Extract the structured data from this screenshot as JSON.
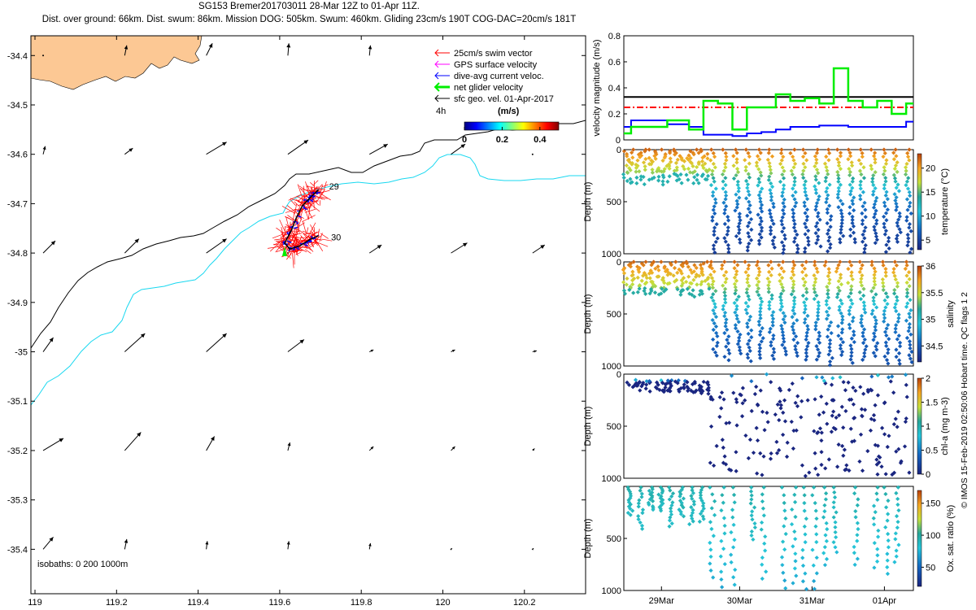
{
  "title": {
    "line1": "SG153 Bremer201703011 28-Mar 12Z to 01-Apr 11Z.",
    "line2": "Dist. over ground: 66km. Dist. swum: 86km. Mission DOG: 505km. Swum: 460km. Gliding 23cm/s 190T COG-DAC=20cm/s 181T"
  },
  "colors": {
    "land": "#fcc894",
    "isobath200": "#000000",
    "isobath1000": "#18d8f0",
    "swim": "#ff0000",
    "gps": "#ff00ff",
    "dac": "#0000ff",
    "net": "#00ee00",
    "sfc": "#000000",
    "hline_black": "#000000",
    "hline_red": "#ff0000"
  },
  "chart_data": [
    {
      "type": "map",
      "name": "glider-track-map",
      "xlim": [
        118.99,
        120.35
      ],
      "ylim": [
        -35.49,
        -34.36
      ],
      "xticks": [
        "119",
        "119.2",
        "119.4",
        "119.6",
        "119.8",
        "120",
        "120.2"
      ],
      "xtick_values": [
        119.0,
        119.2,
        119.4,
        119.6,
        119.8,
        120.0,
        120.2
      ],
      "yticks": [
        "-34.4",
        "-34.5",
        "-34.6",
        "-34.7",
        "-34.8",
        "-34.9",
        "-35",
        "-35.1",
        "-35.2",
        "-35.3",
        "-35.4"
      ],
      "ytick_values": [
        -34.4,
        -34.5,
        -34.6,
        -34.7,
        -34.8,
        -34.9,
        -35.0,
        -35.1,
        -35.2,
        -35.3,
        -35.4
      ],
      "legend": [
        {
          "label": "25cm/s swim vector",
          "series": "swim"
        },
        {
          "label": "GPS surface velocity",
          "series": "gps"
        },
        {
          "label": "dive-avg current veloc.",
          "series": "dac"
        },
        {
          "label": "net glider velocity",
          "series": "net"
        },
        {
          "label": "sfc geo. vel. 01-Apr-2017",
          "series": "sfc"
        }
      ],
      "colorbar": {
        "label": "(m/s)",
        "period_label": "4h",
        "ticks": [
          "0",
          "0.2",
          "0.4"
        ],
        "tick_values": [
          0,
          0.2,
          0.4
        ],
        "range": [
          0,
          0.5
        ]
      },
      "isobath_label": "isobaths: 0   200  1000m",
      "annotations": [
        {
          "text": "29",
          "lon": 119.715,
          "lat": -34.665
        },
        {
          "text": "30",
          "lon": 119.72,
          "lat": -34.768
        }
      ],
      "track": [
        {
          "lon": 119.695,
          "lat": -34.672
        },
        {
          "lon": 119.678,
          "lat": -34.685
        },
        {
          "lon": 119.655,
          "lat": -34.705
        },
        {
          "lon": 119.64,
          "lat": -34.73
        },
        {
          "lon": 119.628,
          "lat": -34.755
        },
        {
          "lon": 119.612,
          "lat": -34.78
        },
        {
          "lon": 119.625,
          "lat": -34.792
        },
        {
          "lon": 119.65,
          "lat": -34.785
        },
        {
          "lon": 119.675,
          "lat": -34.772
        },
        {
          "lon": 119.695,
          "lat": -34.765
        }
      ],
      "sfc_vectors": {
        "note": "surface geostrophic velocity arrows on grid, u/v in m/s",
        "grid_lon": [
          119.02,
          119.22,
          119.42,
          119.62,
          119.82,
          120.02,
          120.22
        ],
        "grid_lat": [
          -34.4,
          -34.6,
          -34.8,
          -35.0,
          -35.2,
          -35.4
        ],
        "u": [
          [
            0,
            0.01,
            0.03,
            0.005,
            0.005,
            0.04,
            0
          ],
          [
            0.01,
            0.04,
            0.1,
            0.1,
            0.09,
            0.07,
            0
          ],
          [
            0.06,
            0.07,
            0.1,
            0,
            0.06,
            0.08,
            0.06
          ],
          [
            0.05,
            0.1,
            0.1,
            0.08,
            0.02,
            0.02,
            0.02
          ],
          [
            0.1,
            0.08,
            0.04,
            0.01,
            0.02,
            0.02,
            0.01
          ],
          [
            0.05,
            0.01,
            0.005,
            0.005,
            0.005,
            0.005,
            0.005
          ]
        ],
        "v": [
          [
            0,
            0.05,
            0.06,
            0.06,
            0.05,
            0.03,
            0
          ],
          [
            0.04,
            0.03,
            0.06,
            0.07,
            0.05,
            0.05,
            0
          ],
          [
            0.06,
            0.07,
            0.07,
            0,
            0.04,
            0.05,
            0.04
          ],
          [
            0.07,
            0.09,
            0.09,
            0.06,
            0.01,
            0.01,
            0.005
          ],
          [
            0.06,
            0.09,
            0.07,
            0.04,
            0.02,
            0.02,
            0.01
          ],
          [
            0.06,
            0.05,
            0.04,
            0.04,
            0.03,
            0.005,
            0.005
          ]
        ]
      }
    },
    {
      "type": "line",
      "name": "velocity-magnitude-panel",
      "ylabel": "velocity magnitude (m/s)",
      "ylim": [
        0,
        0.8
      ],
      "yticks": [
        "0",
        "0.2",
        "0.4",
        "0.6",
        "0.8"
      ],
      "ytick_values": [
        0,
        0.2,
        0.4,
        0.6,
        0.8
      ],
      "hlines": [
        {
          "name": "max",
          "value": 0.33,
          "style": "solid",
          "color_key": "hline_black"
        },
        {
          "name": "target",
          "value": 0.25,
          "style": "dashdot",
          "color_key": "hline_red"
        }
      ],
      "x": [
        0,
        0.05,
        0.1,
        0.2,
        0.25,
        0.3,
        0.35,
        0.4,
        0.45,
        0.5,
        0.55,
        0.6,
        0.65,
        0.7,
        0.75,
        0.8,
        0.85,
        0.9,
        0.95,
        1.0
      ],
      "series": [
        {
          "name": "dive-avg current",
          "color_key": "dac",
          "values": [
            0.1,
            0.15,
            0.15,
            0.12,
            0.1,
            0.04,
            0.04,
            0.03,
            0.05,
            0.06,
            0.08,
            0.1,
            0.1,
            0.11,
            0.11,
            0.1,
            0.1,
            0.1,
            0.1,
            0.14
          ]
        },
        {
          "name": "net glider",
          "color_key": "net",
          "values": [
            0.05,
            0.1,
            0.1,
            0.15,
            0.08,
            0.3,
            0.28,
            0.08,
            0.25,
            0.25,
            0.35,
            0.3,
            0.32,
            0.28,
            0.55,
            0.3,
            0.25,
            0.3,
            0.2,
            0.28
          ]
        }
      ]
    },
    {
      "type": "scatter",
      "name": "temperature-panel",
      "ylabel": "Depth (m)",
      "ylim": [
        1000,
        0
      ],
      "yticks": [
        "0",
        "500",
        "1000"
      ],
      "ytick_values": [
        0,
        500,
        1000
      ],
      "colorbar": {
        "label": "temperature (°C)",
        "ticks": [
          "5",
          "10",
          "15",
          "20"
        ],
        "tick_values": [
          5,
          10,
          15,
          20
        ],
        "range": [
          3,
          23
        ]
      },
      "profiles": {
        "shallow_count": 7,
        "deep_count": 18,
        "shallow_max_depth": 340,
        "deep_max_depth": 1000
      },
      "profile_stats": {
        "surface_value": 22,
        "thermocline_depth": 230,
        "bottom_value": 4
      }
    },
    {
      "type": "scatter",
      "name": "salinity-panel",
      "ylabel": "Depth (m)",
      "ylim": [
        1000,
        0
      ],
      "yticks": [
        "0",
        "500",
        "1000"
      ],
      "ytick_values": [
        0,
        500,
        1000
      ],
      "colorbar": {
        "label": "salinity",
        "ticks": [
          "34.5",
          "35",
          "35.5",
          "36"
        ],
        "tick_values": [
          34.5,
          35,
          35.5,
          36
        ],
        "range": [
          34.2,
          36
        ]
      },
      "profiles": {
        "shallow_count": 7,
        "deep_count": 18,
        "shallow_max_depth": 340,
        "deep_max_depth": 1000
      },
      "profile_stats": {
        "surface_value": 35.9,
        "thermocline_depth": 250,
        "bottom_value": 34.4
      }
    },
    {
      "type": "scatter",
      "name": "chla-panel",
      "ylabel": "Depth (m)",
      "ylim": [
        1000,
        0
      ],
      "yticks": [
        "0",
        "500",
        "1000"
      ],
      "ytick_values": [
        0,
        500,
        1000
      ],
      "colorbar": {
        "label": "chl-a (mg m-3)",
        "ticks": [
          "0",
          "0.5",
          "1",
          "1.5",
          "2"
        ],
        "tick_values": [
          0,
          0.5,
          1,
          1.5,
          2
        ],
        "range": [
          0,
          2
        ]
      },
      "profile_stats": {
        "surface_value": 0.7,
        "deep_value": 0.02
      }
    },
    {
      "type": "scatter",
      "name": "oxygen-panel",
      "ylabel": "Depth (m)",
      "ylim": [
        1000,
        0
      ],
      "yticks": [
        "500",
        "1000"
      ],
      "ytick_values": [
        500,
        1000
      ],
      "colorbar": {
        "label": "Ox. sat. ratio (%)",
        "ticks": [
          "50",
          "100",
          "150"
        ],
        "tick_values": [
          50,
          100,
          150
        ],
        "range": [
          20,
          170
        ]
      },
      "xlim": [
        0,
        1
      ],
      "xticks": [
        "29Mar",
        "30Mar",
        "31Mar",
        "01Apr"
      ],
      "xtick_values": [
        0.13,
        0.4,
        0.65,
        0.9
      ],
      "profile_stats": {
        "surface_value": 95,
        "deep_value": 80
      }
    }
  ],
  "side_note": "© IMOS 15-Feb-2019 02:50:06 Hobart time. QC flags 1  2"
}
